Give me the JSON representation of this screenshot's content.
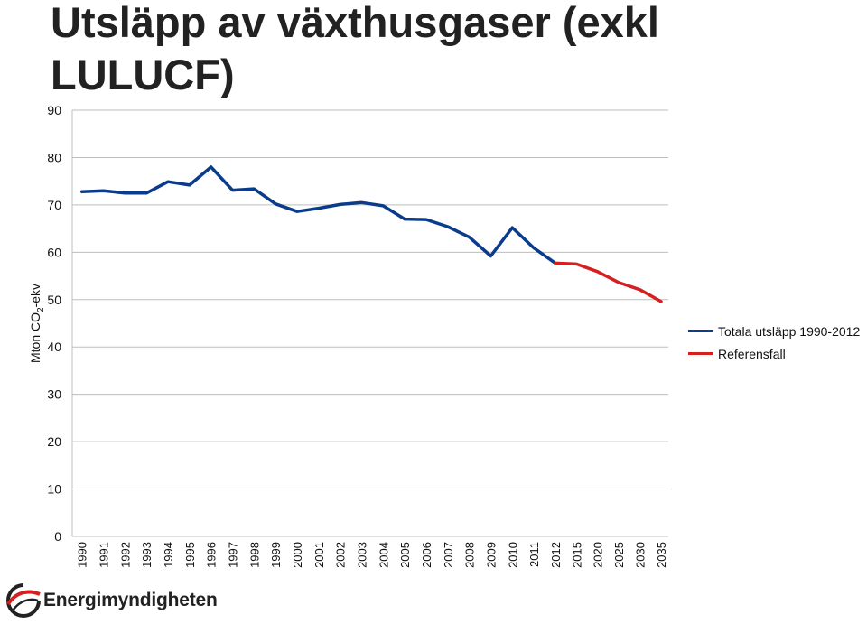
{
  "chart_data": {
    "type": "line",
    "title": "Utsläpp av växthusgaser (exkl LULUCF)",
    "ylabel": "Mton CO2-ekv",
    "ylabel_parts": {
      "before": "Mton CO",
      "sub": "2",
      "after": "-ekv"
    },
    "ylim": [
      0,
      90
    ],
    "yticks": [
      0,
      10,
      20,
      30,
      40,
      50,
      60,
      70,
      80,
      90
    ],
    "grid": true,
    "legend_position": "right",
    "x_tick_labels": [
      "1990",
      "1991",
      "1992",
      "1993",
      "1994",
      "1995",
      "1996",
      "1997",
      "1998",
      "1999",
      "2000",
      "2001",
      "2002",
      "2003",
      "2004",
      "2005",
      "2006",
      "2007",
      "2008",
      "2009",
      "2010",
      "2011",
      "2012",
      "2015",
      "2020",
      "2025",
      "2030",
      "2035"
    ],
    "series": [
      {
        "name": "Totala utsläpp 1990-2012",
        "color": "#0b3c8c",
        "x": [
          1990,
          1991,
          1992,
          1993,
          1994,
          1995,
          1996,
          1997,
          1998,
          1999,
          2000,
          2001,
          2002,
          2003,
          2004,
          2005,
          2006,
          2007,
          2008,
          2009,
          2010,
          2011,
          2012
        ],
        "y": [
          72.8,
          73.0,
          72.5,
          72.5,
          74.9,
          74.2,
          78.0,
          73.1,
          73.4,
          70.2,
          68.6,
          69.3,
          70.1,
          70.5,
          69.8,
          67.0,
          66.9,
          65.4,
          63.2,
          59.2,
          65.2,
          60.9,
          57.7
        ]
      },
      {
        "name": "Referensfall",
        "color": "#d42020",
        "x": [
          2012,
          2015,
          2020,
          2025,
          2030,
          2035
        ],
        "y": [
          57.7,
          57.5,
          55.9,
          53.6,
          52.1,
          49.6
        ]
      }
    ]
  },
  "branding": {
    "logo_text": "Energimyndigheten",
    "logo_icon": "energimyndigheten-swirl-icon"
  }
}
